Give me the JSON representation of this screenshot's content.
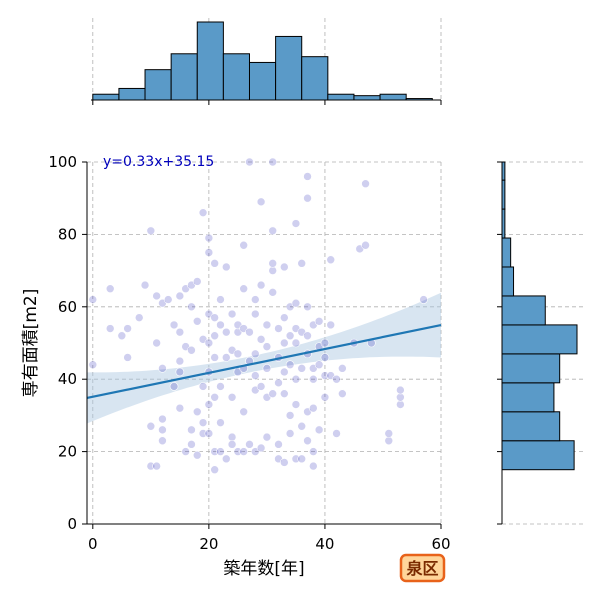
{
  "chart_data": {
    "type": "scatter",
    "xlabel": "築年数[年]",
    "ylabel": "専有面積[m2]",
    "xlim": [
      -1,
      60
    ],
    "ylim": [
      0,
      100
    ],
    "xticks": [
      0,
      20,
      40,
      60
    ],
    "yticks": [
      0,
      20,
      40,
      60,
      80,
      100
    ],
    "grid": true,
    "annotation": "y=0.33x+35.15",
    "badge": "泉区",
    "regression": {
      "slope": 0.33,
      "intercept": 35.15
    },
    "colors": {
      "points": "#4040c0",
      "regression_line": "#1f77b4",
      "confidence_band": "#a9c6e0",
      "histogram": "#5a9ac8",
      "badge_fill": "#ffd59a",
      "badge_border": "#e8621a"
    },
    "points": [
      [
        0,
        44
      ],
      [
        0,
        62
      ],
      [
        3,
        65
      ],
      [
        3,
        54
      ],
      [
        5,
        52
      ],
      [
        6,
        46
      ],
      [
        6,
        54
      ],
      [
        8,
        57
      ],
      [
        9,
        66
      ],
      [
        10,
        81
      ],
      [
        10,
        16
      ],
      [
        10,
        27
      ],
      [
        11,
        50
      ],
      [
        11,
        16
      ],
      [
        11,
        63
      ],
      [
        12,
        23
      ],
      [
        12,
        29
      ],
      [
        12,
        26
      ],
      [
        12,
        61
      ],
      [
        12,
        43
      ],
      [
        13,
        62
      ],
      [
        14,
        55
      ],
      [
        14,
        38
      ],
      [
        15,
        32
      ],
      [
        15,
        42
      ],
      [
        15,
        45
      ],
      [
        15,
        53
      ],
      [
        15,
        63
      ],
      [
        16,
        20
      ],
      [
        16,
        49
      ],
      [
        16,
        65
      ],
      [
        17,
        22
      ],
      [
        17,
        26
      ],
      [
        17,
        48
      ],
      [
        17,
        60
      ],
      [
        17,
        66
      ],
      [
        18,
        19
      ],
      [
        18,
        31
      ],
      [
        18,
        56
      ],
      [
        18,
        67
      ],
      [
        19,
        38
      ],
      [
        19,
        51
      ],
      [
        19,
        28
      ],
      [
        19,
        25
      ],
      [
        19,
        86
      ],
      [
        20,
        33
      ],
      [
        20,
        42
      ],
      [
        20,
        58
      ],
      [
        20,
        79
      ],
      [
        20,
        50
      ],
      [
        20,
        25
      ],
      [
        20,
        75
      ],
      [
        21,
        20
      ],
      [
        21,
        15
      ],
      [
        21,
        46
      ],
      [
        21,
        35
      ],
      [
        21,
        52
      ],
      [
        21,
        57
      ],
      [
        21,
        72
      ],
      [
        22,
        20
      ],
      [
        22,
        28
      ],
      [
        22,
        38
      ],
      [
        22,
        55
      ],
      [
        22,
        62
      ],
      [
        23,
        18
      ],
      [
        23,
        46
      ],
      [
        23,
        53
      ],
      [
        23,
        71
      ],
      [
        24,
        24
      ],
      [
        24,
        22
      ],
      [
        24,
        35
      ],
      [
        24,
        48
      ],
      [
        24,
        58
      ],
      [
        25,
        20
      ],
      [
        25,
        42
      ],
      [
        25,
        47
      ],
      [
        25,
        53
      ],
      [
        25,
        55
      ],
      [
        26,
        20
      ],
      [
        26,
        31
      ],
      [
        26,
        43
      ],
      [
        26,
        54
      ],
      [
        26,
        65
      ],
      [
        26,
        77
      ],
      [
        27,
        22
      ],
      [
        27,
        45
      ],
      [
        27,
        53
      ],
      [
        27,
        100
      ],
      [
        28,
        20
      ],
      [
        28,
        37
      ],
      [
        28,
        41
      ],
      [
        28,
        47
      ],
      [
        28,
        58
      ],
      [
        28,
        62
      ],
      [
        29,
        21
      ],
      [
        29,
        38
      ],
      [
        29,
        51
      ],
      [
        29,
        89
      ],
      [
        29,
        66
      ],
      [
        30,
        24
      ],
      [
        30,
        35
      ],
      [
        30,
        43
      ],
      [
        30,
        49
      ],
      [
        30,
        55
      ],
      [
        31,
        36
      ],
      [
        31,
        64
      ],
      [
        31,
        70
      ],
      [
        31,
        72
      ],
      [
        31,
        81
      ],
      [
        31,
        100
      ],
      [
        32,
        18
      ],
      [
        32,
        22
      ],
      [
        32,
        39
      ],
      [
        32,
        46
      ],
      [
        32,
        54
      ],
      [
        33,
        17
      ],
      [
        33,
        36
      ],
      [
        33,
        42
      ],
      [
        33,
        50
      ],
      [
        33,
        57
      ],
      [
        33,
        71
      ],
      [
        34,
        25
      ],
      [
        34,
        30
      ],
      [
        34,
        44
      ],
      [
        34,
        52
      ],
      [
        34,
        60
      ],
      [
        35,
        18
      ],
      [
        35,
        33
      ],
      [
        35,
        40
      ],
      [
        35,
        50
      ],
      [
        35,
        54
      ],
      [
        35,
        61
      ],
      [
        35,
        83
      ],
      [
        36,
        18
      ],
      [
        36,
        27
      ],
      [
        36,
        43
      ],
      [
        36,
        53
      ],
      [
        36,
        72
      ],
      [
        37,
        23
      ],
      [
        37,
        31
      ],
      [
        37,
        47
      ],
      [
        37,
        52
      ],
      [
        37,
        60
      ],
      [
        37,
        90
      ],
      [
        37,
        96
      ],
      [
        38,
        16
      ],
      [
        38,
        20
      ],
      [
        38,
        32
      ],
      [
        38,
        40
      ],
      [
        38,
        43
      ],
      [
        38,
        55
      ],
      [
        39,
        26
      ],
      [
        39,
        44
      ],
      [
        39,
        49
      ],
      [
        39,
        56
      ],
      [
        40,
        35
      ],
      [
        40,
        41
      ],
      [
        40,
        46
      ],
      [
        40,
        50
      ],
      [
        41,
        41
      ],
      [
        41,
        55
      ],
      [
        41,
        73
      ],
      [
        42,
        25
      ],
      [
        42,
        40
      ],
      [
        43,
        36
      ],
      [
        43,
        43
      ],
      [
        45,
        50
      ],
      [
        46,
        76
      ],
      [
        47,
        77
      ],
      [
        47,
        94
      ],
      [
        48,
        50
      ],
      [
        51,
        23
      ],
      [
        51,
        25
      ],
      [
        53,
        33
      ],
      [
        53,
        35
      ],
      [
        53,
        37
      ],
      [
        57,
        62
      ]
    ],
    "x_histogram": {
      "bins": [
        0,
        4.5,
        9,
        13.5,
        18,
        22.5,
        27,
        31.5,
        36,
        40.5,
        45,
        49.5,
        54,
        58.5
      ],
      "heights": [
        4,
        8,
        21,
        32,
        54,
        32,
        26,
        44,
        30,
        4,
        3,
        4,
        1
      ]
    },
    "y_histogram": {
      "bins": [
        15,
        23,
        31,
        39,
        47,
        55,
        63,
        71,
        79,
        87,
        95,
        100
      ],
      "heights": [
        25,
        20,
        18,
        20,
        26,
        15,
        4,
        3,
        1,
        1,
        1
      ]
    }
  }
}
